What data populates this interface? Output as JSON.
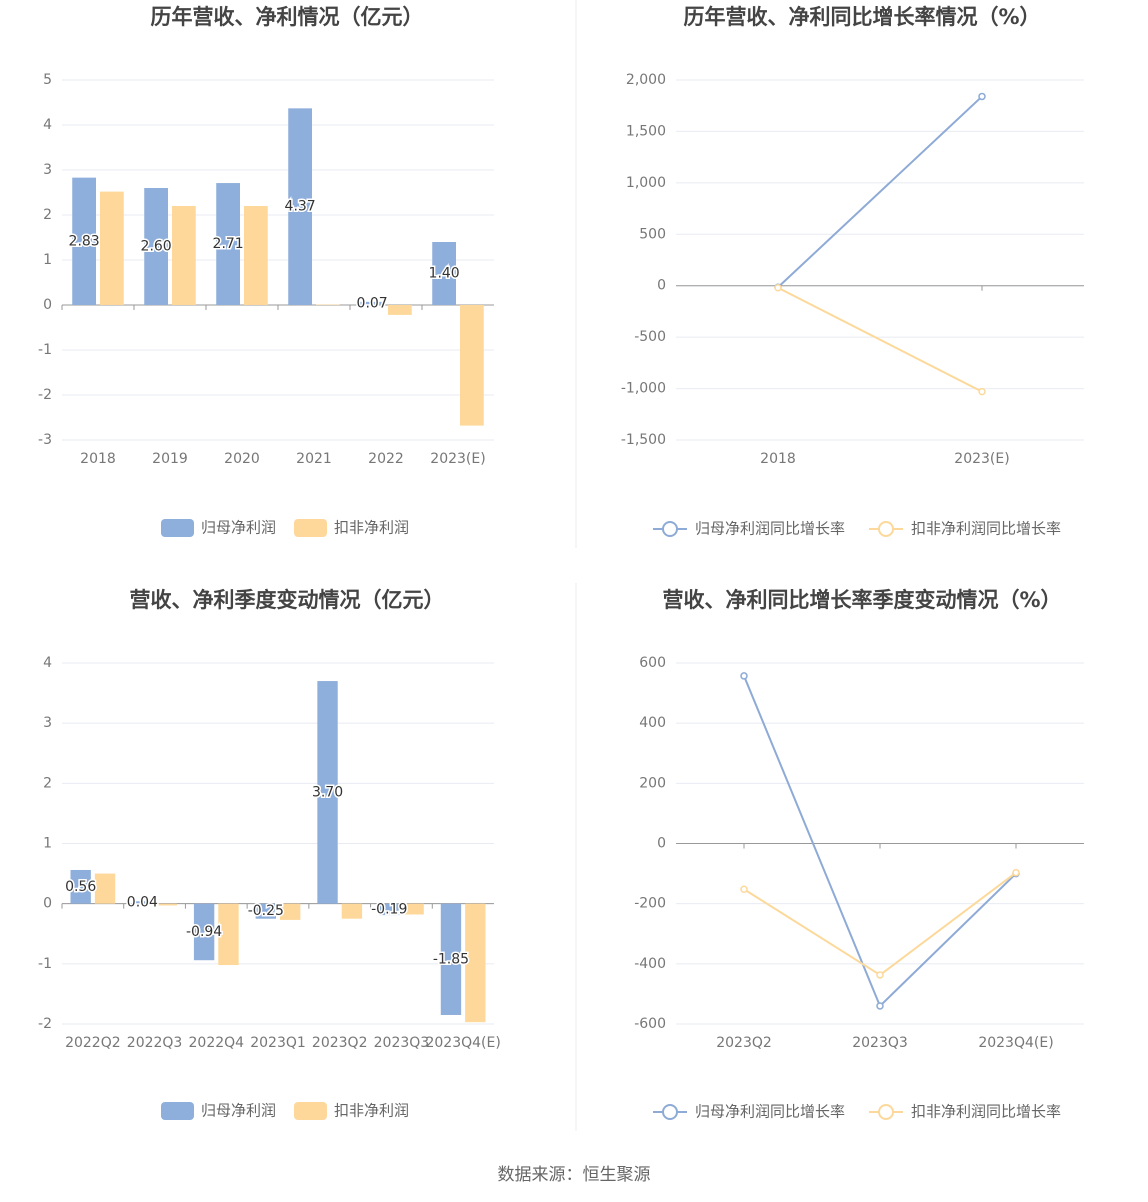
{
  "chart_data": [
    {
      "type": "bar",
      "title": "历年营收、净利情况（亿元）",
      "categories": [
        "2018",
        "2019",
        "2020",
        "2021",
        "2022",
        "2023(E)"
      ],
      "series": [
        {
          "name": "归母净利润",
          "color": "#8eaedb",
          "values": [
            2.83,
            2.6,
            2.71,
            4.37,
            0.07,
            1.4
          ],
          "value_labels": [
            "2.83",
            "2.60",
            "2.71",
            "4.37",
            "0.07",
            "1.40"
          ]
        },
        {
          "name": "扣非净利润",
          "color": "#fdd89a",
          "values": [
            2.52,
            2.2,
            2.2,
            0.01,
            -0.22,
            -2.68
          ]
        }
      ],
      "ylim": [
        -3,
        5
      ],
      "yticks": [
        -3,
        -2,
        -1,
        0,
        1,
        2,
        3,
        4,
        5
      ],
      "grid": true
    },
    {
      "type": "line",
      "title": "历年营收、净利同比增长率情况（%）",
      "categories": [
        "2018",
        "2023(E)"
      ],
      "series": [
        {
          "name": "归母净利润同比增长率",
          "color": "#8eaad6",
          "values": [
            -15,
            1840
          ]
        },
        {
          "name": "扣非净利润同比增长率",
          "color": "#fcd99a",
          "values": [
            -20,
            -1030
          ]
        }
      ],
      "ylim": [
        -1500,
        2000
      ],
      "yticks": [
        {
          "value": -1500,
          "label": "-1,500"
        },
        {
          "value": -1000,
          "label": "-1,000"
        },
        -500,
        0,
        500,
        {
          "value": 1000,
          "label": "1,000"
        },
        {
          "value": 1500,
          "label": "1,500"
        },
        {
          "value": 2000,
          "label": "2,000"
        }
      ],
      "grid": true
    },
    {
      "type": "bar",
      "title": "营收、净利季度变动情况（亿元）",
      "categories": [
        "2022Q2",
        "2022Q3",
        "2022Q4",
        "2023Q1",
        "2023Q2",
        "2023Q3",
        "2023Q4(E)"
      ],
      "series": [
        {
          "name": "归母净利润",
          "color": "#8eaedb",
          "values": [
            0.56,
            0.04,
            -0.94,
            -0.25,
            3.7,
            -0.19,
            -1.85
          ],
          "value_labels": [
            "0.56",
            "0.04",
            "-0.94",
            "-0.25",
            "3.70",
            "-0.19",
            "-1.85"
          ]
        },
        {
          "name": "扣非净利润",
          "color": "#fdd89a",
          "values": [
            0.5,
            -0.03,
            -1.02,
            -0.27,
            -0.25,
            -0.18,
            -1.97
          ]
        }
      ],
      "ylim": [
        -2,
        4
      ],
      "yticks": [
        -2,
        -1,
        0,
        1,
        2,
        3,
        4
      ],
      "grid": true
    },
    {
      "type": "line",
      "title": "营收、净利同比增长率季度变动情况（%）",
      "categories": [
        "2023Q2",
        "2023Q3",
        "2023Q4(E)"
      ],
      "series": [
        {
          "name": "归母净利润同比增长率",
          "color": "#8eaad6",
          "values": [
            557,
            -540,
            -100
          ]
        },
        {
          "name": "扣非净利润同比增长率",
          "color": "#fcd99a",
          "values": [
            -152,
            -437,
            -97
          ]
        }
      ],
      "ylim": [
        -600,
        600
      ],
      "yticks": [
        -600,
        -400,
        -200,
        0,
        200,
        400,
        600
      ],
      "grid": true
    }
  ],
  "source": "数据来源：恒生聚源"
}
